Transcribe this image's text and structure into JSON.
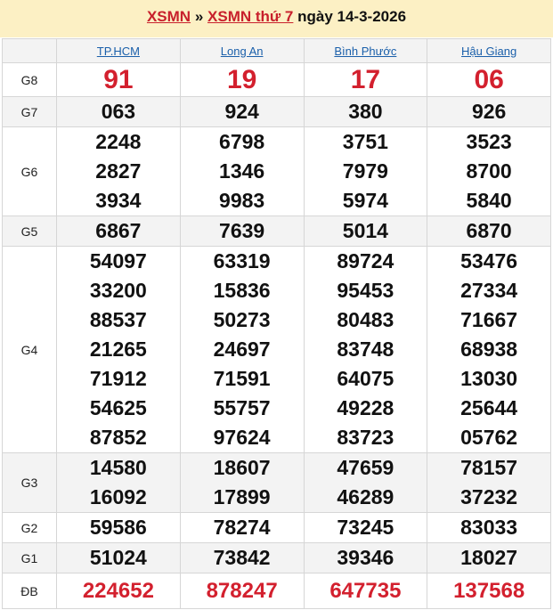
{
  "header": {
    "link1": "XSMN",
    "sep": "»",
    "link2": "XSMN thứ 7",
    "date_text": "ngày 14-3-2026"
  },
  "provinces": [
    "TP.HCM",
    "Long An",
    "Bình Phước",
    "Hậu Giang"
  ],
  "prizes": [
    {
      "label": "G8",
      "values": [
        [
          "91"
        ],
        [
          "19"
        ],
        [
          "17"
        ],
        [
          "06"
        ]
      ]
    },
    {
      "label": "G7",
      "values": [
        [
          "063"
        ],
        [
          "924"
        ],
        [
          "380"
        ],
        [
          "926"
        ]
      ]
    },
    {
      "label": "G6",
      "values": [
        [
          "2248",
          "2827",
          "3934"
        ],
        [
          "6798",
          "1346",
          "9983"
        ],
        [
          "3751",
          "7979",
          "5974"
        ],
        [
          "3523",
          "8700",
          "5840"
        ]
      ]
    },
    {
      "label": "G5",
      "values": [
        [
          "6867"
        ],
        [
          "7639"
        ],
        [
          "5014"
        ],
        [
          "6870"
        ]
      ]
    },
    {
      "label": "G4",
      "values": [
        [
          "54097",
          "33200",
          "88537",
          "21265",
          "71912",
          "54625",
          "87852"
        ],
        [
          "63319",
          "15836",
          "50273",
          "24697",
          "71591",
          "55757",
          "97624"
        ],
        [
          "89724",
          "95453",
          "80483",
          "83748",
          "64075",
          "49228",
          "83723"
        ],
        [
          "53476",
          "27334",
          "71667",
          "68938",
          "13030",
          "25644",
          "05762"
        ]
      ]
    },
    {
      "label": "G3",
      "values": [
        [
          "14580",
          "16092"
        ],
        [
          "18607",
          "17899"
        ],
        [
          "47659",
          "46289"
        ],
        [
          "78157",
          "37232"
        ]
      ]
    },
    {
      "label": "G2",
      "values": [
        [
          "59586"
        ],
        [
          "78274"
        ],
        [
          "73245"
        ],
        [
          "83033"
        ]
      ]
    },
    {
      "label": "G1",
      "values": [
        [
          "51024"
        ],
        [
          "73842"
        ],
        [
          "39346"
        ],
        [
          "18027"
        ]
      ]
    },
    {
      "label": "ĐB",
      "values": [
        [
          "224652"
        ],
        [
          "878247"
        ],
        [
          "647735"
        ],
        [
          "137568"
        ]
      ]
    }
  ],
  "colors": {
    "accent": "#d3202e",
    "link": "#1a5faa",
    "header_bg": "#fcf0c4"
  }
}
